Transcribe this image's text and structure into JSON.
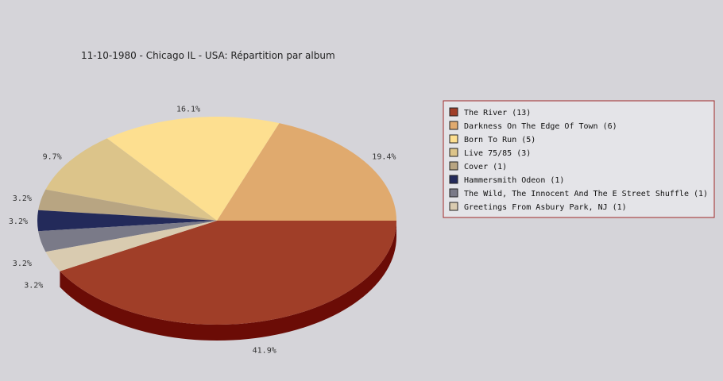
{
  "chart_data": {
    "type": "pie",
    "title": "11-10-1980 - Chicago IL - USA:  Répartition par album",
    "slices": [
      {
        "label": "The River (13)",
        "count": 13,
        "percent": "41.9%",
        "color": "#a03e28",
        "side": "#6b0c06"
      },
      {
        "label": "Darkness On The Edge Of Town (6)",
        "count": 6,
        "percent": "19.4%",
        "color": "#e0aa6e",
        "side": "#b3803e"
      },
      {
        "label": "Born To Run (5)",
        "count": 5,
        "percent": "16.1%",
        "color": "#fddf90",
        "side": "#c9a85a"
      },
      {
        "label": "Live 75/85 (3)",
        "count": 3,
        "percent": "9.7%",
        "color": "#dcc48a",
        "side": "#a8925c"
      },
      {
        "label": "Cover (1)",
        "count": 1,
        "percent": "3.2%",
        "color": "#b8a582",
        "side": "#8a7a5c"
      },
      {
        "label": "Hammersmith Odeon  (1)",
        "count": 1,
        "percent": "3.2%",
        "color": "#232a5a",
        "side": "#141a3a"
      },
      {
        "label": "The Wild, The Innocent And The E Street Shuffle (1)",
        "count": 1,
        "percent": "3.2%",
        "color": "#7a7a88",
        "side": "#55555f"
      },
      {
        "label": "Greetings From Asbury Park, NJ (1)",
        "count": 1,
        "percent": "3.2%",
        "color": "#d9cbb0",
        "side": "#aa9d85"
      }
    ],
    "legend_placement": "right"
  }
}
